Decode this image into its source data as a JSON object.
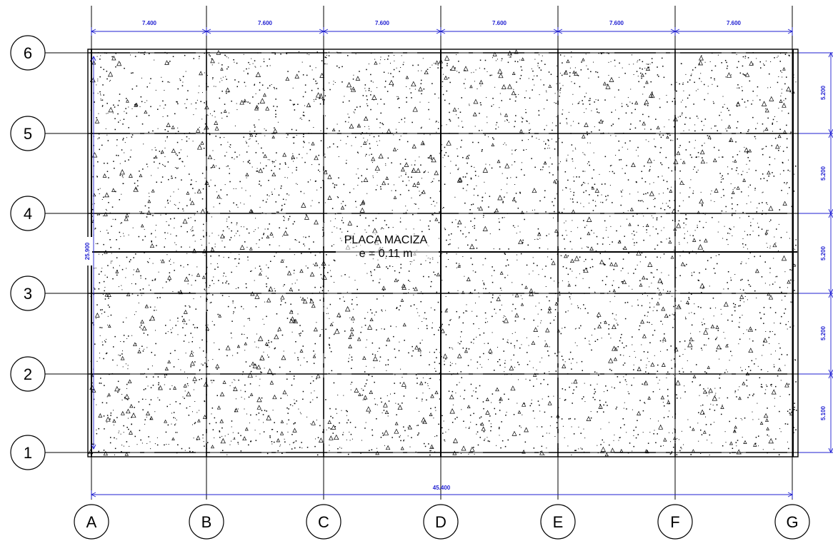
{
  "slab": {
    "title": "PLACA MACIZA",
    "thickness": "e = 0.11 m"
  },
  "axes": {
    "columns": [
      "A",
      "B",
      "C",
      "D",
      "E",
      "F",
      "G"
    ],
    "rows": [
      "1",
      "2",
      "3",
      "4",
      "5",
      "6"
    ]
  },
  "dimensions": {
    "top_spans": [
      "7.400",
      "7.600",
      "7.600",
      "7.600",
      "7.600",
      "7.600"
    ],
    "right_spans": [
      "5.200",
      "5.200",
      "5.200",
      "5.200",
      "5.100"
    ],
    "total_width": "45.400",
    "total_height": "25.900"
  },
  "colors": {
    "dimension": "#1f1fd2",
    "linework": "#000000",
    "background": "#ffffff"
  }
}
